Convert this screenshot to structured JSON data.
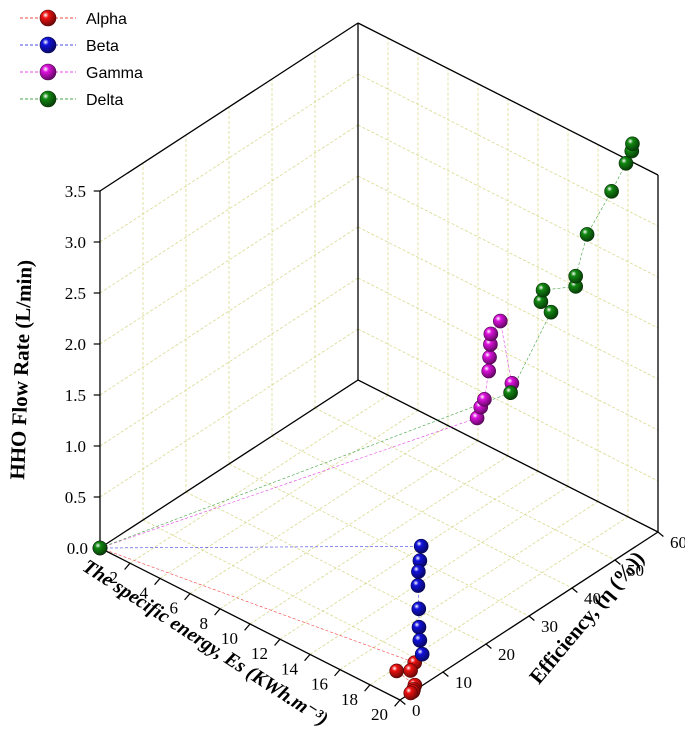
{
  "chart_data": {
    "type": "scatter",
    "title": "",
    "xlabel": "The specific energy, Es (KWh.m⁻³)",
    "ylabel": "Efficiency, (η (%))",
    "zlabel": "HHO Flow Rate (L/min)",
    "xlim": [
      0,
      20
    ],
    "ylim": [
      0,
      60
    ],
    "zlim": [
      0,
      3.5
    ],
    "x_ticks": [
      "0",
      "2",
      "4",
      "6",
      "8",
      "10",
      "12",
      "14",
      "16",
      "18",
      "20"
    ],
    "y_ticks": [
      "0",
      "10",
      "20",
      "30",
      "40",
      "50",
      "60"
    ],
    "z_ticks": [
      "0.0",
      "0.5",
      "1.0",
      "1.5",
      "2.0",
      "2.5",
      "3.0",
      "3.5"
    ],
    "grid": true,
    "legend_position": "top-left",
    "series": [
      {
        "name": "Alpha",
        "color": "#ee1111",
        "points": [
          {
            "x": 0,
            "y": 0,
            "z": 0
          },
          {
            "x": 18.4,
            "y": 9,
            "z": 0
          },
          {
            "x": 18.7,
            "y": 7,
            "z": 0
          },
          {
            "x": 18.2,
            "y": 5.5,
            "z": 0
          },
          {
            "x": 19.7,
            "y": 4.5,
            "z": 0
          },
          {
            "x": 19.9,
            "y": 3.5,
            "z": 0
          },
          {
            "x": 20.0,
            "y": 3.0,
            "z": 0
          },
          {
            "x": 20.0,
            "y": 2.5,
            "z": 0
          }
        ]
      },
      {
        "name": "Beta",
        "color": "#1111dd",
        "points": [
          {
            "x": 0,
            "y": 0,
            "z": 0
          },
          {
            "x": 17.4,
            "y": 14,
            "z": 0.93
          },
          {
            "x": 17.6,
            "y": 13,
            "z": 0.83
          },
          {
            "x": 17.7,
            "y": 12.3,
            "z": 0.75
          },
          {
            "x": 17.9,
            "y": 11.5,
            "z": 0.65
          },
          {
            "x": 18.1,
            "y": 11,
            "z": 0.45
          },
          {
            "x": 18.4,
            "y": 10,
            "z": 0.32
          },
          {
            "x": 18.6,
            "y": 9.5,
            "z": 0.22
          },
          {
            "x": 18.9,
            "y": 9,
            "z": 0.12
          }
        ]
      },
      {
        "name": "Gamma",
        "color": "#dd11dd",
        "points": [
          {
            "x": 0,
            "y": 0,
            "z": 0
          },
          {
            "x": 17.4,
            "y": 27,
            "z": 1.83
          },
          {
            "x": 17.5,
            "y": 27.5,
            "z": 1.93
          },
          {
            "x": 17.6,
            "y": 28,
            "z": 2.0
          },
          {
            "x": 17.6,
            "y": 29,
            "z": 2.25
          },
          {
            "x": 17.6,
            "y": 29.2,
            "z": 2.38
          },
          {
            "x": 17.6,
            "y": 29.4,
            "z": 2.5
          },
          {
            "x": 17.6,
            "y": 29.5,
            "z": 2.6
          },
          {
            "x": 17.8,
            "y": 31,
            "z": 2.7
          },
          {
            "x": 18.0,
            "y": 33,
            "z": 2.05
          }
        ]
      },
      {
        "name": "Delta",
        "color": "#118811",
        "points": [
          {
            "x": 0,
            "y": 0,
            "z": 0
          },
          {
            "x": 18.2,
            "y": 32,
            "z": 2.0
          },
          {
            "x": 18.6,
            "y": 40,
            "z": 2.6
          },
          {
            "x": 18.5,
            "y": 38,
            "z": 2.75
          },
          {
            "x": 18.5,
            "y": 38.5,
            "z": 2.85
          },
          {
            "x": 19.1,
            "y": 44,
            "z": 2.78
          },
          {
            "x": 19.1,
            "y": 44,
            "z": 2.88
          },
          {
            "x": 19.0,
            "y": 47,
            "z": 3.2
          },
          {
            "x": 19.2,
            "y": 52,
            "z": 3.5
          },
          {
            "x": 19.3,
            "y": 55,
            "z": 3.7
          },
          {
            "x": 19.4,
            "y": 56,
            "z": 3.8
          },
          {
            "x": 19.3,
            "y": 56.5,
            "z": 3.85
          }
        ]
      }
    ]
  }
}
